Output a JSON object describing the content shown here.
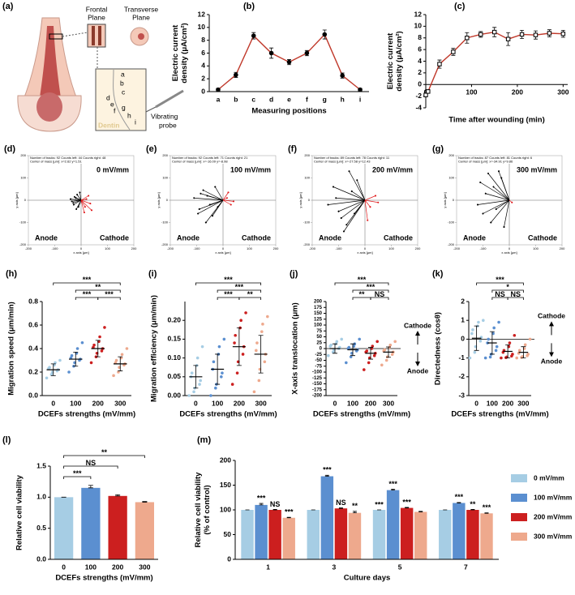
{
  "chart_data": [
    {
      "type": "illustration",
      "label": "(a)",
      "frontal_plane": [
        "Frontal",
        "Plane"
      ],
      "transverse_plane": [
        "Transverse",
        "Plane"
      ],
      "positions": [
        "a",
        "b",
        "c",
        "d",
        "e",
        "f",
        "g",
        "h",
        "i"
      ],
      "dentin": "Dentin",
      "probe": [
        "Vibrating",
        "probe"
      ]
    },
    {
      "type": "line",
      "label": "(b)",
      "ylabel": [
        "Electric current",
        "density (μA/cm²)"
      ],
      "xlabel": "Measuring positions",
      "categories": [
        "a",
        "b",
        "c",
        "d",
        "e",
        "f",
        "g",
        "h",
        "i"
      ],
      "series": [
        {
          "color": "#c0392b",
          "marker_fill": "#000000",
          "values": [
            0.3,
            2.6,
            8.7,
            6.0,
            4.6,
            6.0,
            8.9,
            2.5,
            0.3
          ],
          "errors": [
            0.2,
            0.4,
            0.5,
            0.8,
            0.4,
            0.4,
            0.7,
            0.4,
            0.2
          ]
        }
      ],
      "ylim": [
        0,
        12
      ],
      "yticks": [
        0,
        2,
        4,
        6,
        8,
        10,
        12
      ]
    },
    {
      "type": "line",
      "label": "(c)",
      "ylabel": [
        "Electric current",
        "density (μA/cm²)"
      ],
      "xlabel": "Time after wounding (min)",
      "x": [
        0,
        5,
        30,
        60,
        90,
        120,
        150,
        180,
        210,
        240,
        270,
        300
      ],
      "series": [
        {
          "color": "#c0392b",
          "marker_fill": "#ffffff",
          "values": [
            -1.8,
            -1.2,
            3.5,
            5.6,
            8.0,
            8.6,
            9.0,
            7.8,
            8.6,
            8.5,
            8.8,
            8.7
          ],
          "errors": [
            0.3,
            0.3,
            0.7,
            0.6,
            0.9,
            0.5,
            0.8,
            1.1,
            0.7,
            0.7,
            0.6,
            0.6
          ]
        }
      ],
      "xlim": [
        0,
        310
      ],
      "xticks": [
        0,
        100,
        200,
        300
      ],
      "ylim": [
        -4,
        12
      ],
      "yticks": [
        -4,
        -2,
        0,
        2,
        4,
        6,
        8,
        10,
        12
      ]
    },
    {
      "type": "tracks",
      "label": "(d)",
      "field": "0 mV/mm",
      "header": [
        "Number of tracks: 92  Counts left: 44  Counts right: 48",
        "Center of mass [µm]: x=2.62 y=1.51"
      ],
      "annotations": [
        "Anode",
        "Cathode"
      ],
      "xlabel": "x axis [µm]",
      "ylabel": "y axis [µm]",
      "xlim": [
        -200,
        200
      ],
      "ylim": [
        -200,
        200
      ],
      "xticks": [
        -200,
        -100,
        0,
        100,
        200
      ],
      "yticks": [
        -200,
        -100,
        0,
        100,
        200
      ],
      "series": [
        {
          "color": "#000000",
          "x": [
            -20,
            -35,
            -15,
            -28,
            -10,
            -40,
            -25,
            -5,
            -30,
            -18
          ],
          "y": [
            10,
            -5,
            25,
            -20,
            -30,
            5,
            15,
            35,
            -12,
            -40
          ]
        },
        {
          "color": "#e0191b",
          "x": [
            20,
            35,
            15,
            28,
            40,
            12
          ],
          "y": [
            5,
            -15,
            -30,
            20,
            -45,
            -55
          ]
        }
      ]
    },
    {
      "type": "tracks",
      "label": "(e)",
      "field": "100 mV/mm",
      "header": [
        "Number of tracks: 92  Counts left: 71  Counts right: 21",
        "Center of mass [µm]: x=-16.09 y=-8.98"
      ],
      "annotations": [
        "Anode",
        "Cathode"
      ],
      "xlabel": "x axis [µm]",
      "ylabel": "y axis [µm]",
      "xlim": [
        -200,
        200
      ],
      "ylim": [
        -200,
        200
      ],
      "xticks": [
        -200,
        -100,
        0,
        100,
        200
      ],
      "yticks": [
        -200,
        -100,
        0,
        100,
        200
      ],
      "series": [
        {
          "color": "#000000",
          "x": [
            -60,
            -90,
            -110,
            -40,
            -75,
            -50,
            -95,
            -30,
            -65,
            -85,
            -20
          ],
          "y": [
            20,
            -40,
            10,
            -70,
            45,
            -20,
            -60,
            60,
            -100,
            30,
            -30
          ]
        },
        {
          "color": "#e0191b",
          "x": [
            15,
            30,
            20,
            40
          ],
          "y": [
            10,
            -20,
            35,
            -5
          ]
        }
      ]
    },
    {
      "type": "tracks",
      "label": "(f)",
      "field": "200 mV/mm",
      "header": [
        "Number of tracks: 89  Counts left: 78  Counts right: 11",
        "Center of mass [µm]: x=-27.58 y=12.43"
      ],
      "annotations": [
        "Anode",
        "Cathode"
      ],
      "xlabel": "x axis [µm]",
      "ylabel": "y axis [µm]",
      "xlim": [
        -200,
        200
      ],
      "ylim": [
        -200,
        200
      ],
      "xticks": [
        -200,
        -100,
        0,
        100,
        200
      ],
      "yticks": [
        -200,
        -100,
        0,
        100,
        200
      ],
      "series": [
        {
          "color": "#000000",
          "x": [
            -120,
            -90,
            -60,
            -140,
            -80,
            -50,
            -100,
            -30,
            -70,
            -110,
            -40
          ],
          "y": [
            60,
            -80,
            130,
            -20,
            -140,
            40,
            -50,
            90,
            -110,
            10,
            -60
          ]
        },
        {
          "color": "#e0191b",
          "x": [
            20,
            40,
            10,
            50
          ],
          "y": [
            -30,
            20,
            -90,
            -10
          ]
        }
      ]
    },
    {
      "type": "tracks",
      "label": "(g)",
      "field": "300 mV/mm",
      "header": [
        "Number of tracks: 87  Counts left: 81  Counts right: 6",
        "Center of mass [µm]: x=-34.91 y=9.86"
      ],
      "annotations": [
        "Anode",
        "Cathode"
      ],
      "xlabel": "x axis [µm]",
      "ylabel": "y axis [µm]",
      "xlim": [
        -200,
        200
      ],
      "ylim": [
        -200,
        200
      ],
      "xticks": [
        -200,
        -100,
        0,
        100,
        200
      ],
      "yticks": [
        -200,
        -100,
        0,
        100,
        200
      ],
      "series": [
        {
          "color": "#000000",
          "x": [
            -80,
            -60,
            -120,
            -40,
            -100,
            -30,
            -70,
            -90,
            -50,
            -20,
            -110
          ],
          "y": [
            120,
            60,
            -20,
            130,
            -60,
            100,
            -100,
            30,
            -40,
            -120,
            80
          ]
        },
        {
          "color": "#e0191b",
          "x": [
            10
          ],
          "y": [
            -10
          ]
        }
      ]
    },
    {
      "type": "dotplot",
      "label": "(h)",
      "ylabel": "Migration speed (μm/min)",
      "xlabel": "DCEFs strengths (mV/mm)",
      "categories": [
        "0",
        "100",
        "200",
        "300"
      ],
      "colors": [
        "#a6cde4",
        "#5b8fd0",
        "#cc1f1f",
        "#eea98d"
      ],
      "values": [
        [
          0.15,
          0.18,
          0.2,
          0.21,
          0.22,
          0.23,
          0.24,
          0.26,
          0.28,
          0.3
        ],
        [
          0.2,
          0.25,
          0.28,
          0.3,
          0.31,
          0.32,
          0.34,
          0.36,
          0.4,
          0.45
        ],
        [
          0.28,
          0.33,
          0.36,
          0.38,
          0.4,
          0.41,
          0.43,
          0.46,
          0.5,
          0.58
        ],
        [
          0.17,
          0.2,
          0.24,
          0.26,
          0.27,
          0.28,
          0.3,
          0.32,
          0.35,
          0.4
        ]
      ],
      "means": [
        0.22,
        0.31,
        0.4,
        0.27
      ],
      "sds": [
        0.05,
        0.06,
        0.07,
        0.06
      ],
      "ylim": [
        0,
        0.8
      ],
      "yticks": [
        {
          "value": 0,
          "label": "0.0"
        },
        {
          "value": 0.2,
          "label": "0.2"
        },
        {
          "value": 0.4,
          "label": "0.4"
        },
        {
          "value": 0.6,
          "label": "0.6"
        },
        {
          "value": 0.8,
          "label": "0.8"
        }
      ],
      "brackets": [
        {
          "from": 0,
          "to": 3,
          "label": "***"
        },
        {
          "from": 1,
          "to": 3,
          "label": "**"
        },
        {
          "from": 1,
          "to": 2,
          "label": "***"
        },
        {
          "from": 2,
          "to": 3,
          "label": "***"
        }
      ]
    },
    {
      "type": "dotplot",
      "label": "(i)",
      "ylabel": "Migration efficiency (μm/min)",
      "xlabel": "DCEFs strengths (mV/mm)",
      "categories": [
        "0",
        "100",
        "200",
        "300"
      ],
      "colors": [
        "#a6cde4",
        "#5b8fd0",
        "#cc1f1f",
        "#eea98d"
      ],
      "values": [
        [
          0.0,
          0.01,
          0.02,
          0.03,
          0.04,
          0.05,
          0.06,
          0.08,
          0.1,
          0.13
        ],
        [
          0.0,
          0.02,
          0.03,
          0.05,
          0.06,
          0.07,
          0.09,
          0.11,
          0.13,
          0.15
        ],
        [
          0.03,
          0.06,
          0.09,
          0.11,
          0.13,
          0.14,
          0.16,
          0.18,
          0.2,
          0.22
        ],
        [
          0.01,
          0.04,
          0.07,
          0.09,
          0.11,
          0.12,
          0.14,
          0.17,
          0.19,
          0.21
        ]
      ],
      "means": [
        0.05,
        0.07,
        0.13,
        0.11
      ],
      "sds": [
        0.03,
        0.04,
        0.05,
        0.05
      ],
      "ylim": [
        0,
        0.25
      ],
      "yticks": [
        {
          "value": 0,
          "label": "0.00"
        },
        {
          "value": 0.05,
          "label": "0.05"
        },
        {
          "value": 0.1,
          "label": "0.10"
        },
        {
          "value": 0.15,
          "label": "0.15"
        },
        {
          "value": 0.2,
          "label": "0.20"
        }
      ],
      "brackets": [
        {
          "from": 0,
          "to": 3,
          "label": "***"
        },
        {
          "from": 1,
          "to": 3,
          "label": "***"
        },
        {
          "from": 1,
          "to": 2,
          "label": "***"
        },
        {
          "from": 2,
          "to": 3,
          "label": "**"
        }
      ]
    },
    {
      "type": "dotplot",
      "label": "(j)",
      "ylabel": "X-axis translocation (μm)",
      "xlabel": "DCEFs strengths (mV/mm)",
      "annotations": [
        "Cathode",
        "Anode"
      ],
      "categories": [
        "0",
        "100",
        "200",
        "300"
      ],
      "colors": [
        "#a6cde4",
        "#5b8fd0",
        "#cc1f1f",
        "#eea98d"
      ],
      "values": [
        [
          -30,
          -15,
          -5,
          0,
          5,
          10,
          15,
          20,
          30,
          40
        ],
        [
          -60,
          -35,
          -20,
          -10,
          -5,
          0,
          5,
          10,
          20,
          40
        ],
        [
          -90,
          -60,
          -40,
          -30,
          -20,
          -15,
          -10,
          0,
          10,
          30
        ],
        [
          -70,
          -50,
          -35,
          -25,
          -15,
          -10,
          -5,
          5,
          15,
          30
        ]
      ],
      "means": [
        0,
        -5,
        -20,
        -15
      ],
      "sds": [
        20,
        25,
        25,
        22
      ],
      "ylim": [
        -200,
        200
      ],
      "yticks": [
        -200,
        -175,
        -150,
        -125,
        -100,
        -75,
        -50,
        -25,
        0,
        25,
        50,
        75,
        100,
        125,
        150,
        175,
        200
      ],
      "brackets": [
        {
          "from": 0,
          "to": 3,
          "label": "***"
        },
        {
          "from": 1,
          "to": 3,
          "label": "***"
        },
        {
          "from": 1,
          "to": 2,
          "label": "**"
        },
        {
          "from": 2,
          "to": 3,
          "label": "NS"
        }
      ]
    },
    {
      "type": "dotplot",
      "label": "(k)",
      "ylabel": "Directedness (cosθ)",
      "xlabel": "DCEFs strengths (mV/mm)",
      "annotations": [
        "Cathode",
        "Anode"
      ],
      "categories": [
        "0",
        "100",
        "200",
        "300"
      ],
      "colors": [
        "#a6cde4",
        "#5b8fd0",
        "#cc1f1f",
        "#eea98d"
      ],
      "values": [
        [
          -1,
          -0.7,
          -0.4,
          -0.1,
          0.1,
          0.3,
          0.5,
          0.7,
          0.9,
          1
        ],
        [
          -1,
          -0.95,
          -0.8,
          -0.6,
          -0.4,
          -0.2,
          0,
          0.3,
          0.6,
          0.9
        ],
        [
          -1,
          -0.98,
          -0.95,
          -0.9,
          -0.8,
          -0.7,
          -0.6,
          -0.4,
          -0.2,
          0.2
        ],
        [
          -1,
          -0.97,
          -0.93,
          -0.88,
          -0.8,
          -0.75,
          -0.6,
          -0.5,
          -0.3,
          0
        ]
      ],
      "means": [
        0.05,
        -0.2,
        -0.65,
        -0.7
      ],
      "sds": [
        0.65,
        0.6,
        0.35,
        0.3
      ],
      "ylim": [
        -3,
        2
      ],
      "yticks": [
        -3,
        -2,
        -1,
        0,
        1,
        2
      ],
      "brackets": [
        {
          "from": 0,
          "to": 3,
          "label": "***"
        },
        {
          "from": 1,
          "to": 3,
          "label": "*"
        },
        {
          "from": 1,
          "to": 2,
          "label": "NS"
        },
        {
          "from": 2,
          "to": 3,
          "label": "NS"
        }
      ]
    },
    {
      "type": "bar",
      "label": "(l)",
      "ylabel": "Relative cell viability",
      "xlabel": "DCEFs strengths (mV/mm)",
      "categories": [
        "0",
        "100",
        "200",
        "300"
      ],
      "colors": [
        "#a6cde4",
        "#5b8fd0",
        "#cc1f1f",
        "#eea98d"
      ],
      "values": [
        1.0,
        1.15,
        1.02,
        0.92
      ],
      "errors": [
        0,
        0.04,
        0.02,
        0.01
      ],
      "ylim": [
        0,
        1.5
      ],
      "yticks": [
        {
          "value": 0,
          "label": "0.0"
        },
        {
          "value": 0.5,
          "label": "0.5"
        },
        {
          "value": 1,
          "label": "1.0"
        },
        {
          "value": 1.5,
          "label": "1.5"
        }
      ],
      "brackets": [
        {
          "from": 0,
          "to": 3,
          "label": "**"
        },
        {
          "from": 0,
          "to": 2,
          "label": "NS"
        },
        {
          "from": 0,
          "to": 1,
          "label": "***"
        }
      ]
    },
    {
      "type": "grouped_bar",
      "label": "(m)",
      "ylabel": [
        "Relative cell viability",
        "(% of control)"
      ],
      "xlabel": "Culture days",
      "legend": "right",
      "categories": [
        "1",
        "3",
        "5",
        "7"
      ],
      "series": [
        {
          "name": "0 mV/mm",
          "color": "#a6cde4",
          "values": [
            100,
            100,
            100,
            100
          ],
          "errors": [
            0,
            0,
            0,
            0
          ],
          "sig": [
            null,
            null,
            "***",
            null
          ]
        },
        {
          "name": "100 mV/mm",
          "color": "#5b8fd0",
          "values": [
            110,
            168,
            140,
            114
          ],
          "errors": [
            3,
            2,
            2,
            1
          ],
          "sig": [
            "***",
            "***",
            "***",
            "***"
          ]
        },
        {
          "name": "200 mV/mm",
          "color": "#cc1f1f",
          "values": [
            100,
            103,
            104,
            100
          ],
          "errors": [
            1,
            1,
            1,
            1
          ],
          "sig": [
            "NS",
            "NS",
            "***",
            "**"
          ]
        },
        {
          "name": "300 mV/mm",
          "color": "#eea98d",
          "values": [
            84,
            94,
            96,
            93
          ],
          "errors": [
            1,
            3,
            1,
            1
          ],
          "sig": [
            "***",
            "**",
            null,
            "***"
          ]
        }
      ],
      "ylim": [
        0,
        200
      ],
      "yticks": [
        0,
        50,
        100,
        150,
        200
      ]
    }
  ]
}
